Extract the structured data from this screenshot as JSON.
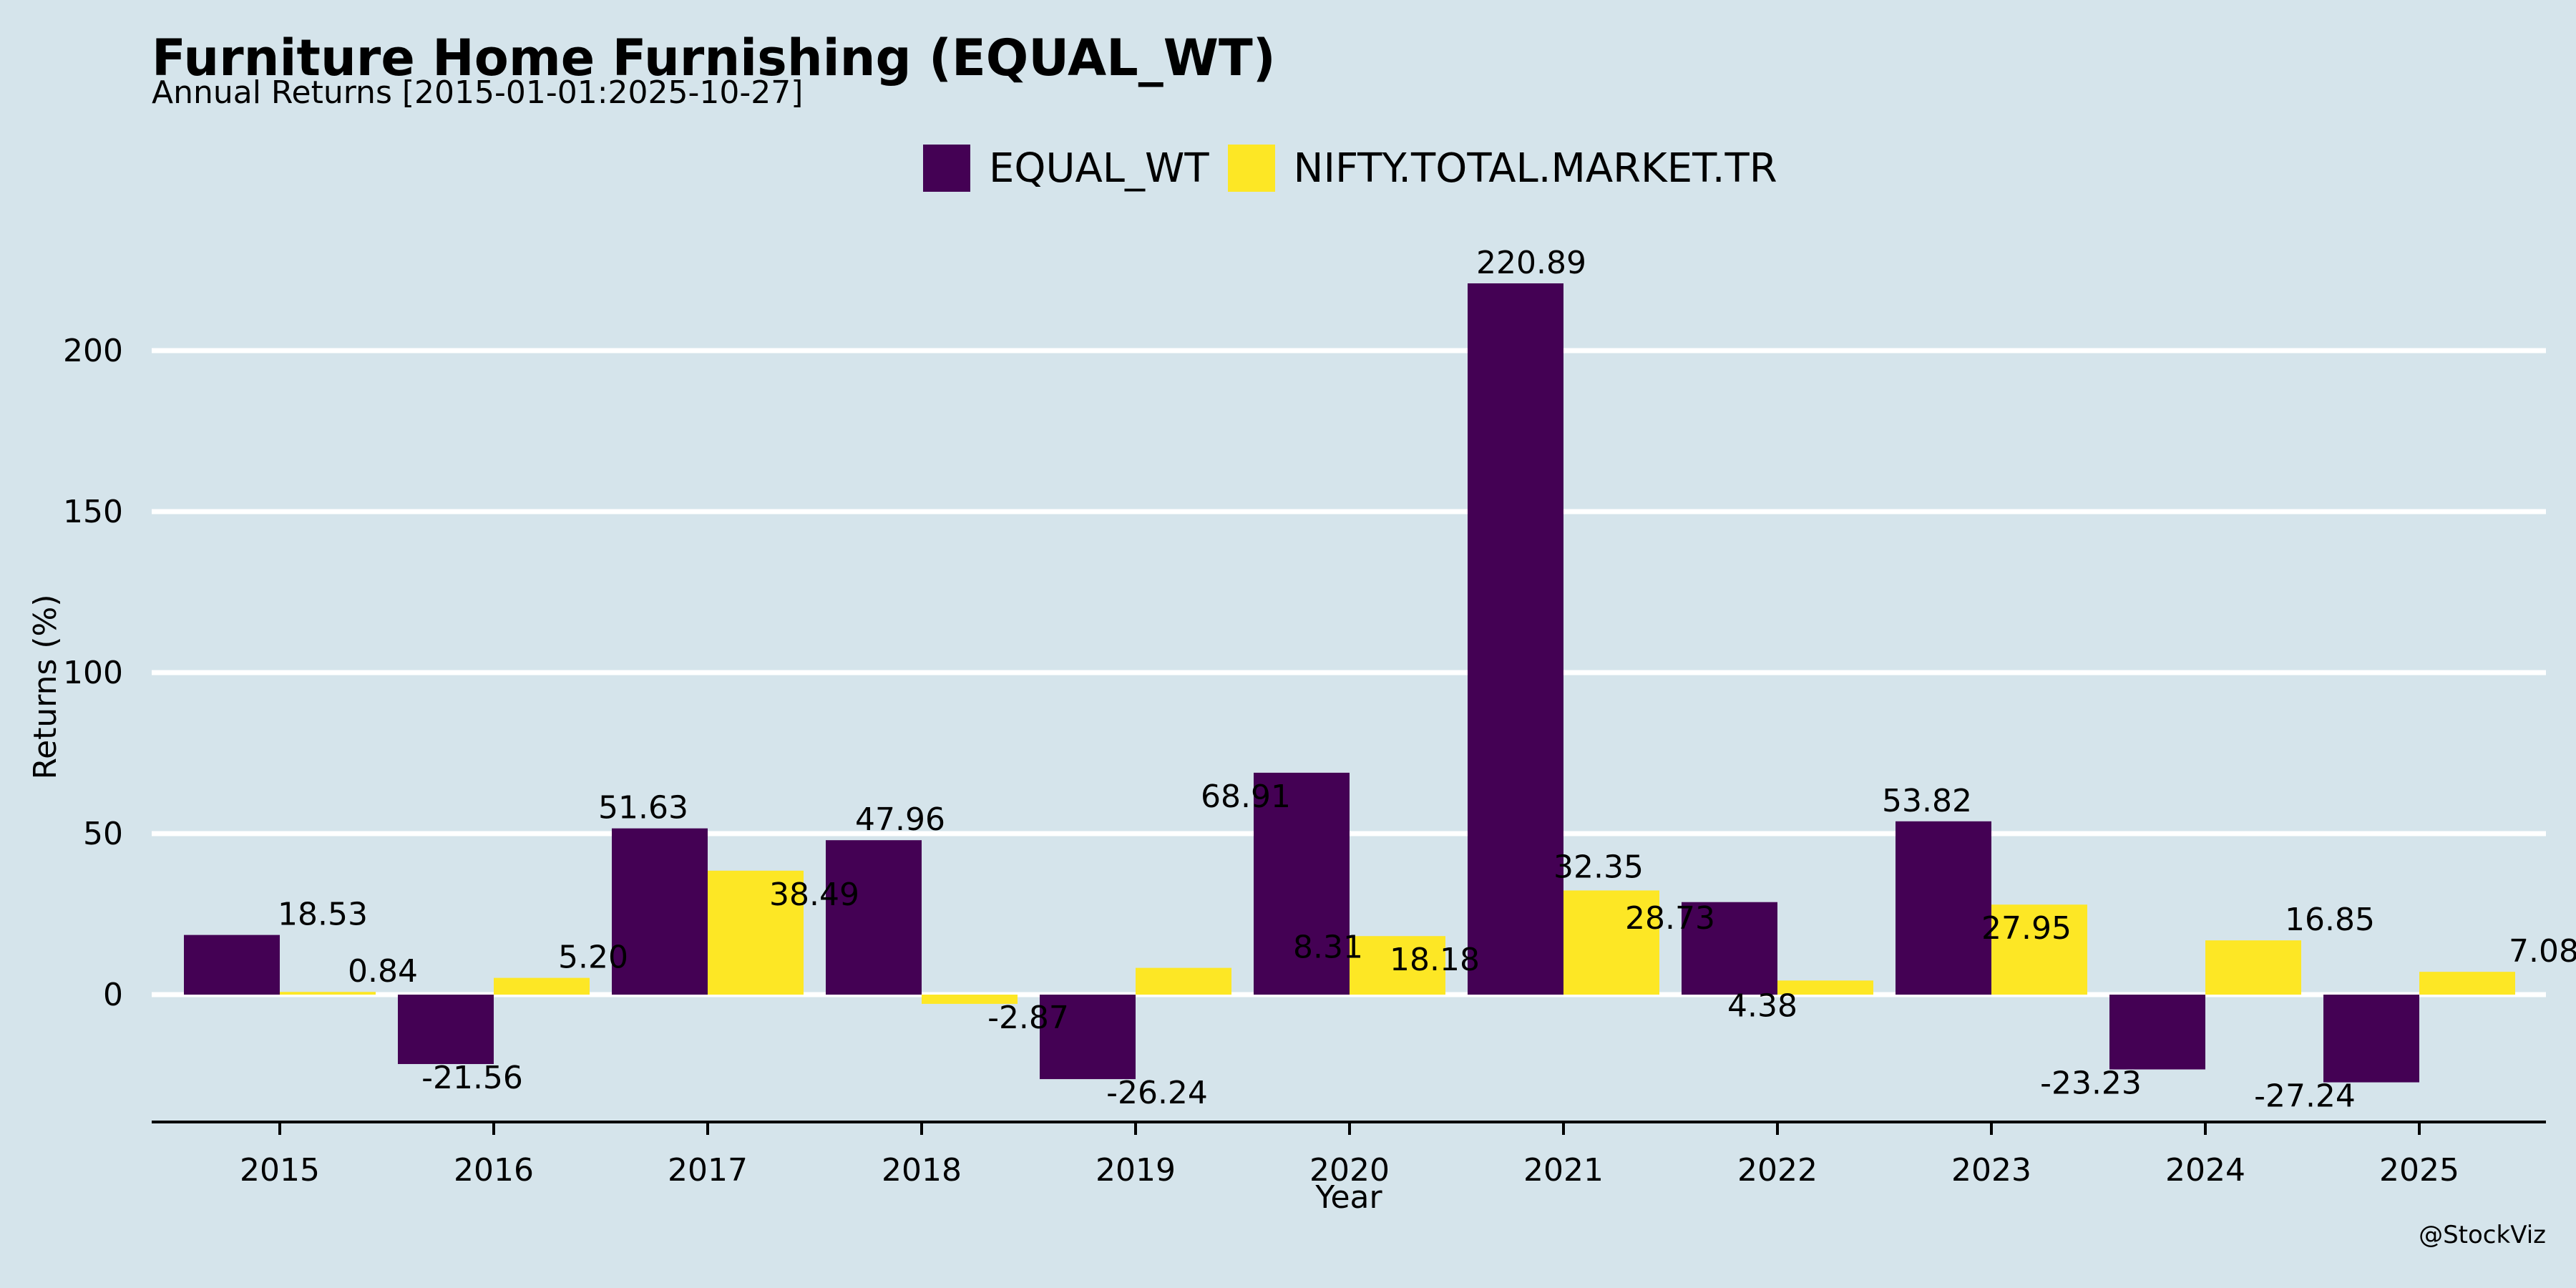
{
  "colors": {
    "background": "#d5e4eb",
    "equal_wt": "#440154",
    "nifty": "#fde725",
    "grid": "#ffffff"
  },
  "chart_data": {
    "type": "bar",
    "title": "Furniture Home Furnishing (EQUAL_WT)",
    "subtitle": "Annual Returns [2015-01-01:2025-10-27]",
    "xlabel": "Year",
    "ylabel": "Returns (%)",
    "ylim": [
      -40,
      240
    ],
    "yticks": [
      0,
      50,
      100,
      150,
      200
    ],
    "grid": true,
    "legend_position": "top-center",
    "categories": [
      "2015",
      "2016",
      "2017",
      "2018",
      "2019",
      "2020",
      "2021",
      "2022",
      "2023",
      "2024",
      "2025"
    ],
    "series": [
      {
        "name": "EQUAL_WT",
        "color": "#440154",
        "values": [
          18.53,
          -21.56,
          51.63,
          47.96,
          -26.24,
          68.91,
          220.89,
          28.73,
          53.82,
          -23.23,
          -27.24
        ],
        "labels": [
          "18.53",
          "-21.56",
          "51.63",
          "47.96",
          "-26.24",
          "68.91",
          "220.89",
          "28.73",
          "53.82",
          "-23.23",
          "-27.24"
        ]
      },
      {
        "name": "NIFTY.TOTAL.MARKET.TR",
        "color": "#fde725",
        "values": [
          0.84,
          5.2,
          38.49,
          -2.87,
          8.31,
          18.18,
          32.35,
          4.38,
          27.95,
          16.85,
          7.08
        ],
        "labels": [
          "0.84",
          "5.20",
          "38.49",
          "-2.87",
          "8.31",
          "18.18",
          "32.35",
          "4.38",
          "27.95",
          "16.85",
          "7.08"
        ]
      }
    ],
    "watermark": "@StockViz"
  }
}
